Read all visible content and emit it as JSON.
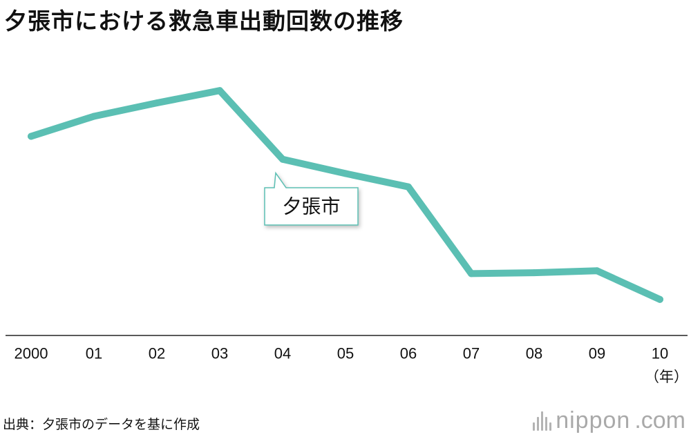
{
  "title": "夕張市における救急車出動回数の推移",
  "source_note": "出典：夕張市のデータを基に作成",
  "brand": {
    "name": "nippon",
    "tld": ".com",
    "color": "#a9a9a9"
  },
  "colors": {
    "series": "#5bbfb3",
    "axis": "#222222"
  },
  "chart_data": {
    "type": "line",
    "categories": [
      "2000",
      "01",
      "02",
      "03",
      "04",
      "05",
      "06",
      "07",
      "08",
      "09",
      "10"
    ],
    "x_unit_label": "（年）",
    "y_axis_visible": false,
    "grid": false,
    "series": [
      {
        "name": "夕張市",
        "values": [
          1130,
          1235,
          1305,
          1370,
          1010,
          935,
          865,
          410,
          415,
          425,
          275
        ]
      }
    ],
    "ylim": [
      -200,
      1700
    ],
    "legend": "callout"
  }
}
